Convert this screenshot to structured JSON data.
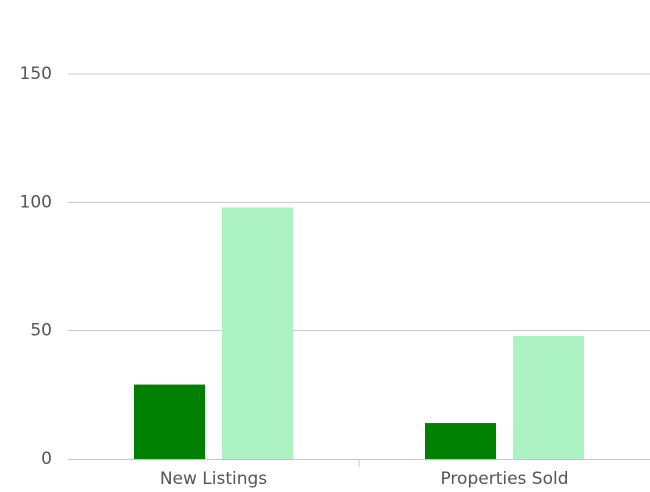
{
  "chart_data": {
    "type": "bar",
    "categories": [
      "New Listings",
      "Properties Sold"
    ],
    "series": [
      {
        "color": "#008000",
        "values": [
          29,
          14
        ]
      },
      {
        "color": "#adf2c2",
        "values": [
          98,
          48
        ]
      }
    ],
    "ylim": [
      0,
      150
    ],
    "yticks": [
      0,
      50,
      100,
      150
    ],
    "grid": true
  }
}
